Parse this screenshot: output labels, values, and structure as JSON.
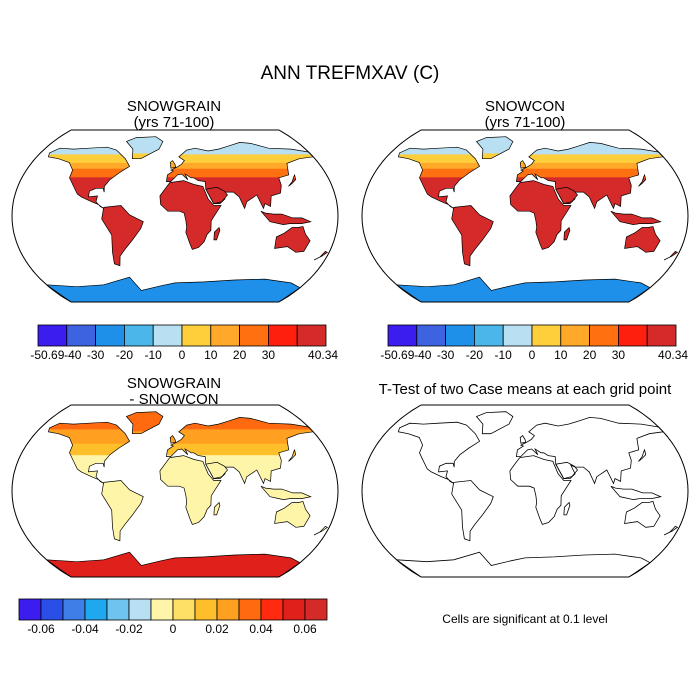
{
  "figure": {
    "title": "ANN TREFMXAV (C)"
  },
  "panels": [
    {
      "title_line1": "SNOWGRAIN",
      "title_line2": "(yrs 71-100)"
    },
    {
      "title_line1": "SNOWCON",
      "title_line2": "(yrs 71-100)"
    },
    {
      "title_line1": "SNOWGRAIN",
      "title_line2": "- SNOWCON"
    },
    {
      "title_line1": "T-Test of two Case means at each grid point",
      "title_line2": ""
    }
  ],
  "colorbars": {
    "absolute": {
      "colors": [
        "#3b1df0",
        "#3d63e0",
        "#1f90ea",
        "#4ab6ea",
        "#b8e0f2",
        "#ffce3b",
        "#ffa82a",
        "#ff7010",
        "#ff1f0f",
        "#d42a2a"
      ],
      "labels": [
        "-50.69",
        "-40",
        "-30",
        "-20",
        "-10",
        "0",
        "10",
        "20",
        "30",
        "40.34"
      ]
    },
    "difference": {
      "colors": [
        "#3b1df0",
        "#2a4fe6",
        "#3d7fe6",
        "#1fa8f0",
        "#6ec3ef",
        "#b8e0f2",
        "#fff5a8",
        "#ffe066",
        "#ffbf2a",
        "#ffa020",
        "#ff6a10",
        "#ff2a10",
        "#e0201a",
        "#d42a2a"
      ],
      "labels": [
        "-0.06",
        "-0.04",
        "-0.02",
        "0",
        "0.02",
        "0.04",
        "0.06"
      ]
    }
  },
  "note": "Cells are significant at 0.1 level"
}
